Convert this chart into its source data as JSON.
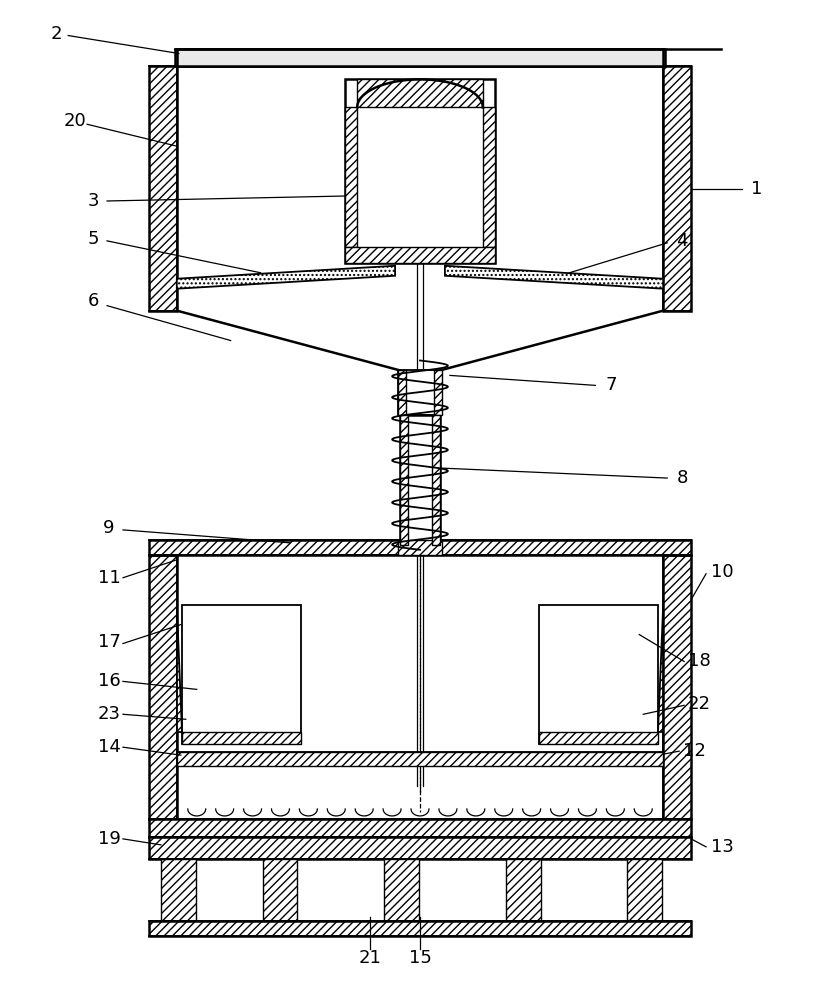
{
  "bg_color": "#ffffff",
  "line_color": "#000000",
  "figsize": [
    8.4,
    10.0
  ],
  "dpi": 100,
  "label_fontsize": 13
}
